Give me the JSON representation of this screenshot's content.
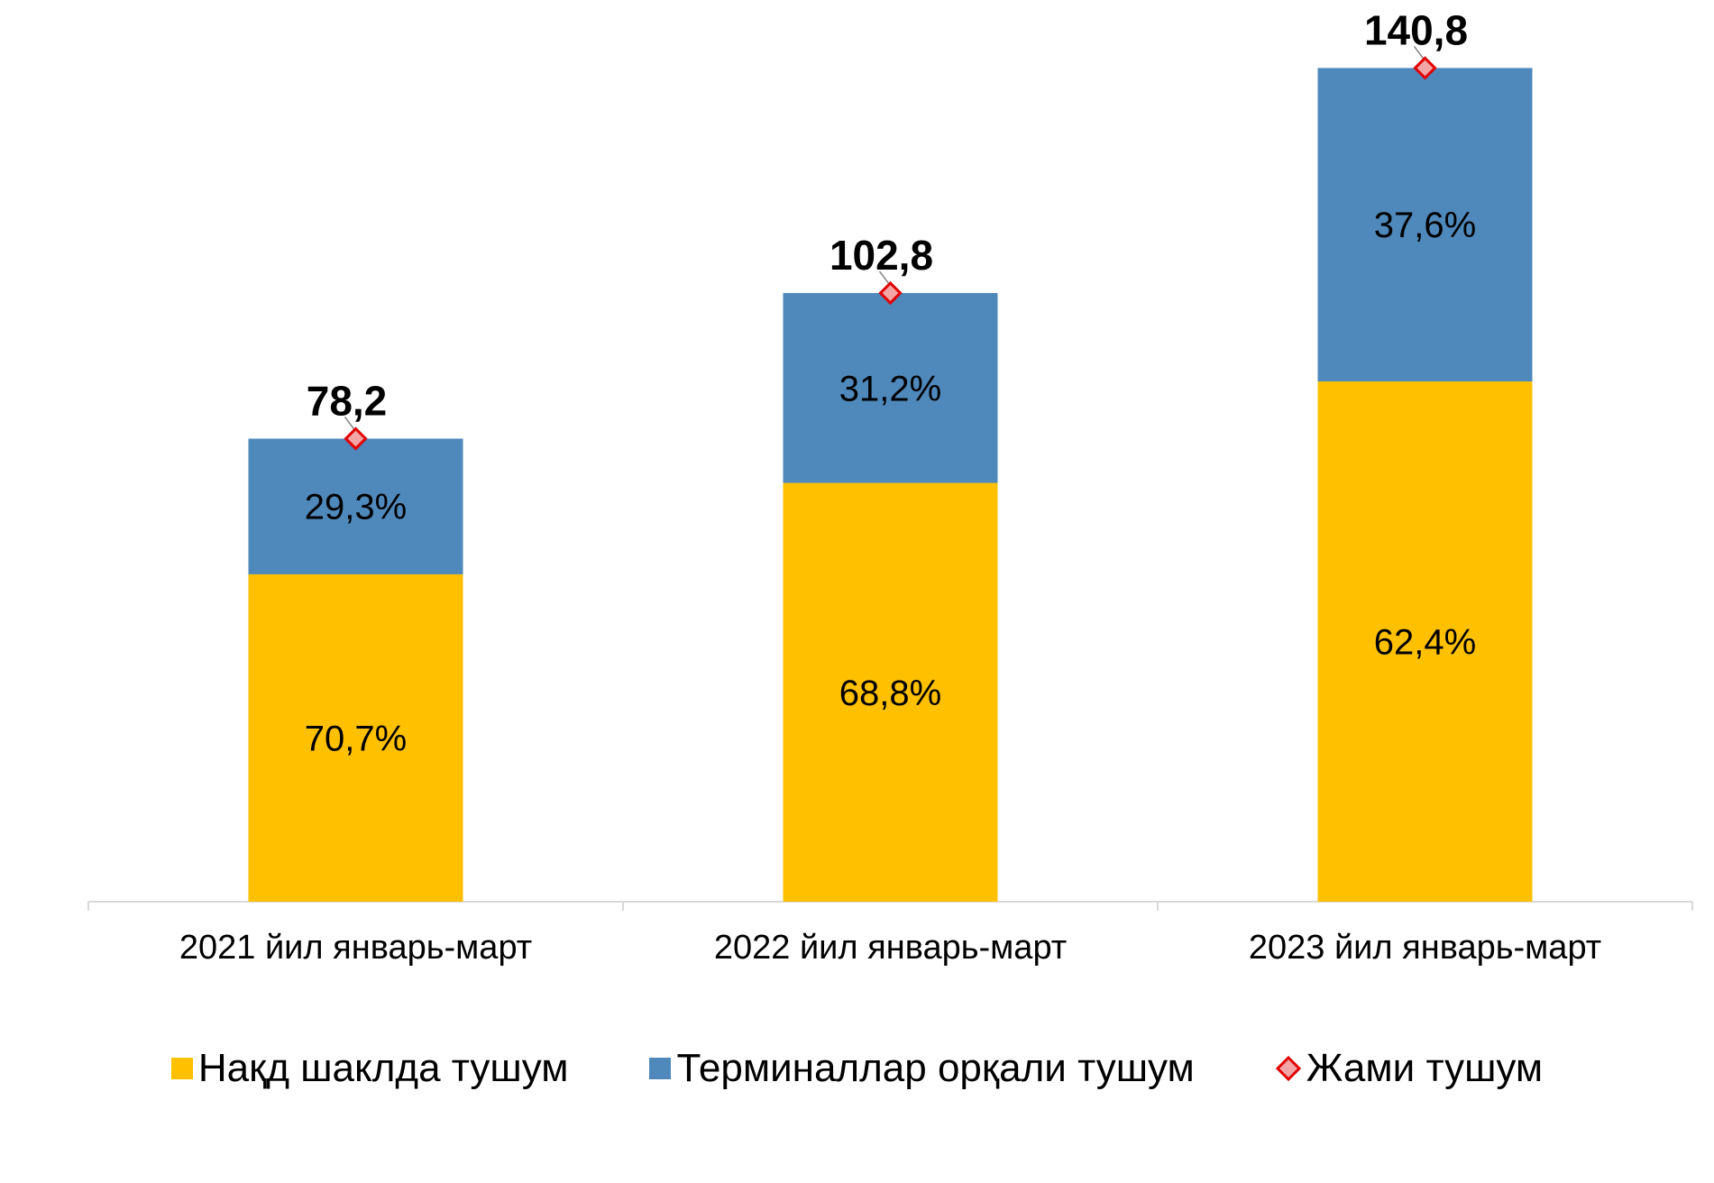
{
  "chart_data": {
    "type": "bar",
    "stacked": true,
    "categories": [
      "2021 йил январь-март",
      "2022 йил январь-март",
      "2023 йил январь-март"
    ],
    "series": [
      {
        "name": "Нақд шаклда тушум",
        "values": [
          70.7,
          68.8,
          62.4
        ],
        "labels": [
          "70,7%",
          "68,8%",
          "62,4%"
        ],
        "color": "#FFC000"
      },
      {
        "name": "Терминаллар орқали тушум",
        "values": [
          29.3,
          31.2,
          37.6
        ],
        "labels": [
          "29,3%",
          "31,2%",
          "37,6%"
        ],
        "color": "#4F88BB"
      },
      {
        "name": "Жами тушум",
        "type": "marker",
        "values": [
          78.2,
          102.8,
          140.8
        ],
        "labels": [
          "78,2",
          "102,8",
          "140,8"
        ],
        "color": "#FF0000"
      }
    ],
    "ylim": [
      0,
      150
    ],
    "grid": false,
    "legend_position": "bottom"
  }
}
